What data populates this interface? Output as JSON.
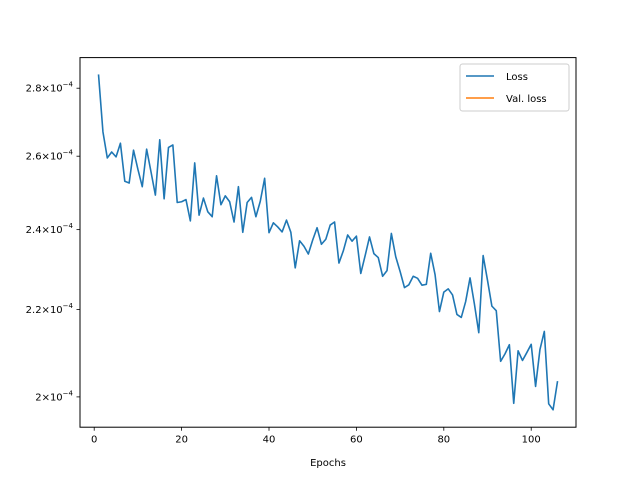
{
  "chart_data": {
    "type": "line",
    "title": "",
    "xlabel": "Epochs",
    "ylabel": "",
    "yscale": "log",
    "xlim": [
      -3.25,
      110.25
    ],
    "ylim": [
      0.0001935,
      0.0002895
    ],
    "grid": false,
    "legend": {
      "placement": "top-right",
      "entries": [
        "Loss",
        "Val. loss"
      ]
    },
    "x_ticks": [
      {
        "value": 0,
        "label": "0"
      },
      {
        "value": 20,
        "label": "20"
      },
      {
        "value": 40,
        "label": "40"
      },
      {
        "value": 60,
        "label": "60"
      },
      {
        "value": 80,
        "label": "80"
      },
      {
        "value": 100,
        "label": "100"
      }
    ],
    "y_ticks": [
      {
        "value": 0.0002,
        "mantissa": "2",
        "exponent": "−4"
      },
      {
        "value": 0.00022,
        "mantissa": "2.2",
        "exponent": "−4"
      },
      {
        "value": 0.00024,
        "mantissa": "2.4",
        "exponent": "−4"
      },
      {
        "value": 0.00026,
        "mantissa": "2.6",
        "exponent": "−4"
      },
      {
        "value": 0.00028,
        "mantissa": "2.8",
        "exponent": "−4"
      }
    ],
    "tick_base": "10",
    "times_sign": "×",
    "series": [
      {
        "name": "Loss",
        "color": "#1f77b4",
        "x": [
          1,
          2,
          3,
          4,
          5,
          6,
          7,
          8,
          9,
          10,
          11,
          12,
          13,
          14,
          15,
          16,
          17,
          18,
          19,
          20,
          21,
          22,
          23,
          24,
          25,
          26,
          27,
          28,
          29,
          30,
          31,
          32,
          33,
          34,
          35,
          36,
          37,
          38,
          39,
          40,
          41,
          42,
          43,
          44,
          45,
          46,
          47,
          48,
          49,
          50,
          51,
          52,
          53,
          54,
          55,
          56,
          57,
          58,
          59,
          60,
          61,
          62,
          63,
          64,
          65,
          66,
          67,
          68,
          69,
          70,
          71,
          72,
          73,
          74,
          75,
          76,
          77,
          78,
          79,
          80,
          81,
          82,
          83,
          84,
          85,
          86,
          87,
          88,
          89,
          90,
          91,
          92,
          93,
          94,
          95,
          96,
          97,
          98,
          99,
          100,
          101,
          102,
          103,
          104,
          105,
          106
        ],
        "values": [
          0.000284,
          0.000267,
          0.0002595,
          0.0002612,
          0.0002598,
          0.0002637,
          0.000253,
          0.0002525,
          0.0002617,
          0.0002563,
          0.0002515,
          0.000262,
          0.0002556,
          0.0002492,
          0.0002647,
          0.0002482,
          0.0002625,
          0.0002632,
          0.0002472,
          0.0002474,
          0.000248,
          0.0002423,
          0.0002581,
          0.0002438,
          0.0002484,
          0.0002447,
          0.0002434,
          0.0002545,
          0.0002466,
          0.000249,
          0.0002474,
          0.000242,
          0.0002515,
          0.0002393,
          0.0002472,
          0.0002486,
          0.0002434,
          0.0002475,
          0.0002538,
          0.0002392,
          0.0002418,
          0.0002407,
          0.0002394,
          0.0002425,
          0.0002393,
          0.0002302,
          0.0002371,
          0.0002357,
          0.0002337,
          0.0002373,
          0.0002405,
          0.0002362,
          0.0002375,
          0.0002412,
          0.000242,
          0.0002314,
          0.0002345,
          0.0002386,
          0.000237,
          0.0002383,
          0.0002288,
          0.0002333,
          0.0002381,
          0.0002338,
          0.0002328,
          0.0002281,
          0.0002295,
          0.000239,
          0.000233,
          0.0002293,
          0.0002253,
          0.000226,
          0.0002281,
          0.0002276,
          0.0002259,
          0.0002261,
          0.0002339,
          0.0002285,
          0.0002195,
          0.0002242,
          0.000225,
          0.0002235,
          0.0002188,
          0.0002181,
          0.0002219,
          0.0002277,
          0.0002213,
          0.0002145,
          0.0002333,
          0.0002271,
          0.0002208,
          0.0002197,
          0.0002079,
          0.0002096,
          0.0002117,
          0.0001986,
          0.0002103,
          0.0002081,
          0.0002099,
          0.0002118,
          0.0002023,
          0.0002106,
          0.0002148,
          0.0001985,
          0.0001972,
          0.0002033
        ]
      },
      {
        "name": "Val. loss",
        "color": "#ff7f0e",
        "x": [],
        "values": []
      }
    ]
  }
}
